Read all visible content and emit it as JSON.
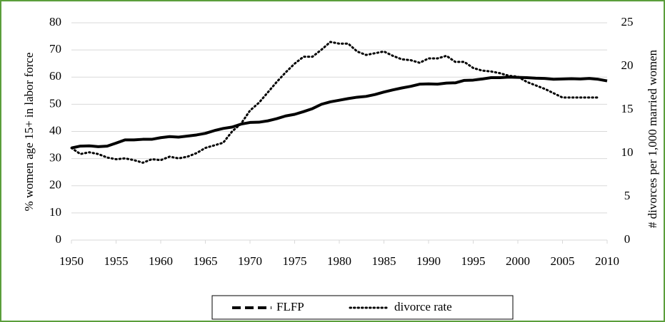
{
  "chart_data": {
    "type": "line",
    "y_label": "% women age 15+ in labor force",
    "y2_label": "# divorces per 1,000 married women",
    "x": [
      1950,
      1951,
      1952,
      1953,
      1954,
      1955,
      1956,
      1957,
      1958,
      1959,
      1960,
      1961,
      1962,
      1963,
      1964,
      1965,
      1966,
      1967,
      1968,
      1969,
      1970,
      1971,
      1972,
      1973,
      1974,
      1975,
      1976,
      1977,
      1978,
      1979,
      1980,
      1981,
      1982,
      1983,
      1984,
      1985,
      1986,
      1987,
      1988,
      1989,
      1990,
      1991,
      1992,
      1993,
      1994,
      1995,
      1996,
      1997,
      1998,
      1999,
      2000,
      2001,
      2002,
      2003,
      2004,
      2005,
      2006,
      2007,
      2008,
      2009,
      2010
    ],
    "series": [
      {
        "name": "FLFP",
        "color": "#000000",
        "values": [
          33.9,
          34.6,
          34.7,
          34.4,
          34.6,
          35.7,
          36.9,
          36.9,
          37.1,
          37.1,
          37.7,
          38.1,
          37.9,
          38.3,
          38.7,
          39.3,
          40.3,
          41.1,
          41.6,
          42.7,
          43.3,
          43.4,
          43.9,
          44.7,
          45.7,
          46.3,
          47.3,
          48.4,
          50.0,
          50.9,
          51.5,
          52.1,
          52.6,
          52.9,
          53.6,
          54.5,
          55.3,
          56.0,
          56.6,
          57.4,
          57.5,
          57.4,
          57.8,
          57.9,
          58.8,
          58.9,
          59.3,
          59.8,
          59.8,
          60.0,
          59.9,
          59.8,
          59.6,
          59.5,
          59.2,
          59.3,
          59.4,
          59.3,
          59.5,
          59.2,
          58.6
        ]
      },
      {
        "name": "divorce rate",
        "color": "#000000",
        "axis": "y2",
        "values": [
          10.6,
          9.9,
          10.1,
          9.9,
          9.5,
          9.3,
          9.4,
          9.2,
          8.9,
          9.3,
          9.2,
          9.6,
          9.4,
          9.6,
          10.0,
          10.6,
          10.9,
          11.2,
          12.5,
          13.4,
          14.9,
          15.8,
          17.0,
          18.2,
          19.3,
          20.3,
          21.1,
          21.1,
          21.9,
          22.8,
          22.6,
          22.6,
          21.7,
          21.3,
          21.5,
          21.7,
          21.2,
          20.8,
          20.7,
          20.4,
          20.9,
          20.9,
          21.2,
          20.5,
          20.5,
          19.8,
          19.5,
          19.4,
          19.2,
          18.9,
          18.8,
          18.2,
          17.8,
          17.4,
          16.9,
          16.4,
          16.4,
          16.4,
          16.4,
          16.4,
          null
        ]
      }
    ],
    "xlim": [
      1950,
      2010
    ],
    "xticks": [
      1950,
      1955,
      1960,
      1965,
      1970,
      1975,
      1980,
      1985,
      1990,
      1995,
      2000,
      2005,
      2010
    ],
    "ylim": [
      0,
      80
    ],
    "yticks": [
      0,
      10,
      20,
      30,
      40,
      50,
      60,
      70,
      80
    ],
    "y2lim": [
      0,
      25
    ],
    "y2ticks": [
      0,
      5,
      10,
      15,
      20,
      25
    ],
    "grid": true,
    "legend": "bottom"
  }
}
